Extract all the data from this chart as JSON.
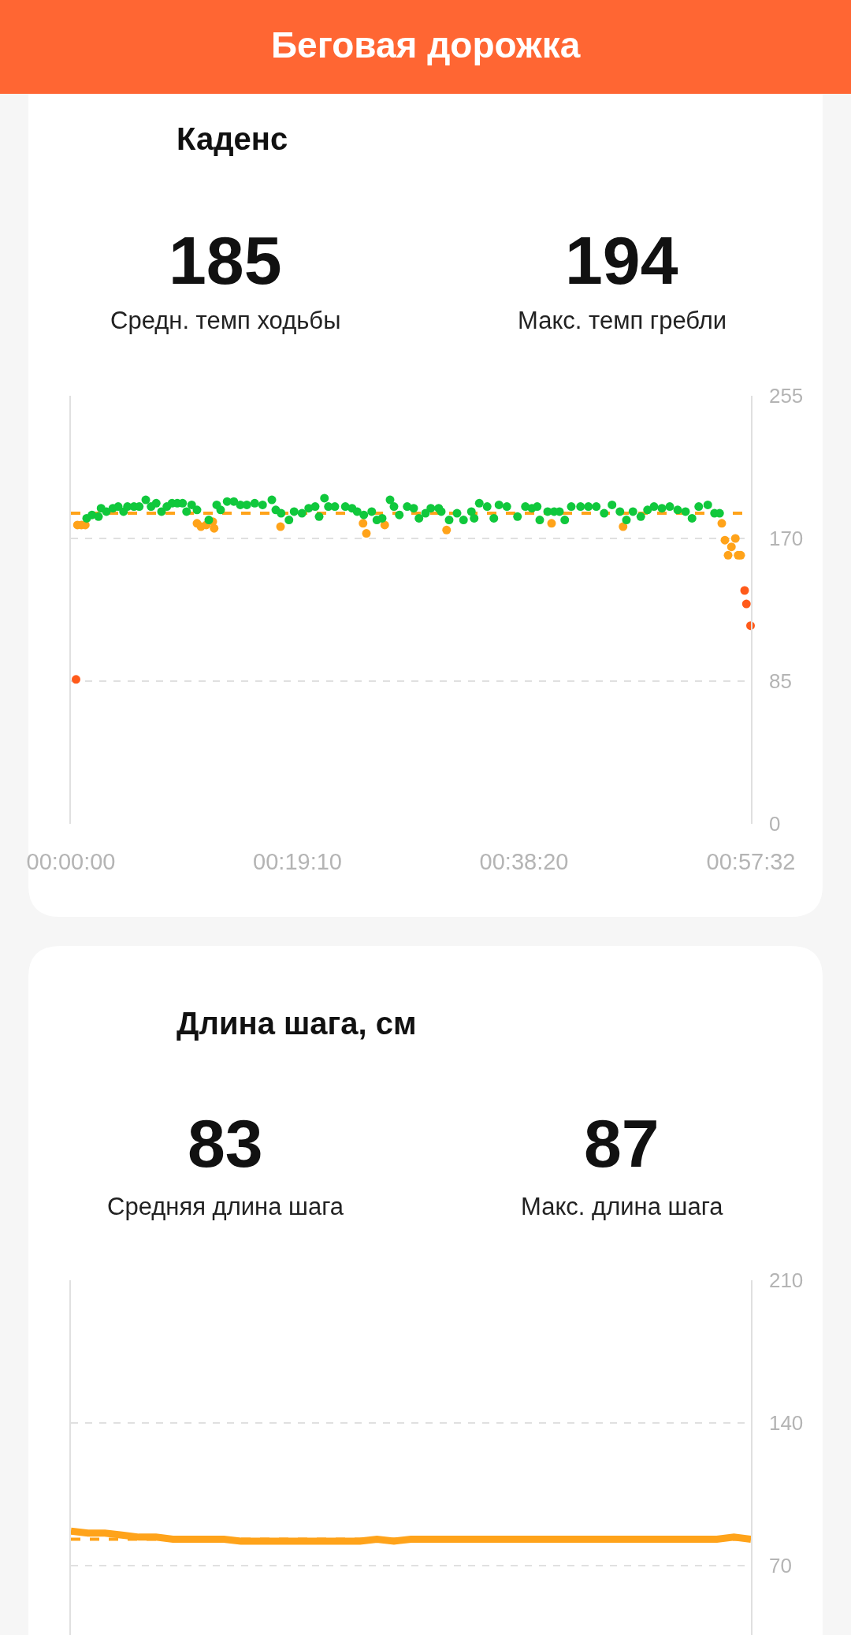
{
  "chart_data": [
    {
      "type": "other",
      "title": "Беговая дорожка"
    },
    {
      "type": "scatter",
      "title": "Каденс",
      "annotations": [
        "185",
        "Средн. темп ходьбы",
        "194",
        "Макс. темп гребли"
      ],
      "xlim": [
        0,
        3452
      ],
      "xticks": [
        {
          "value": 0,
          "label": "00:00:00"
        },
        {
          "value": 1150,
          "label": "00:19:10"
        },
        {
          "value": 2300,
          "label": "00:38:20"
        },
        {
          "value": 3452,
          "label": "00:57:32"
        }
      ],
      "ylim": [
        0,
        255
      ],
      "yticks": [
        0,
        85,
        170,
        255
      ],
      "grid": "y",
      "marker": "circle",
      "ref_lines": [
        {
          "axis": "y",
          "value": 185,
          "color": "#ffa31a",
          "line_style": "dashed"
        }
      ],
      "series": [
        {
          "color": "#ffa31a",
          "x": [
            33,
            53,
            73,
            640,
            660,
            687,
            720,
            727,
            1064,
            1483,
            1500,
            1593,
            1907,
            2440,
            2803,
            3304,
            3320,
            3336,
            3353,
            3373,
            3387,
            3400
          ],
          "values": [
            178,
            178,
            178,
            179,
            177,
            178,
            180,
            176,
            177,
            179,
            173,
            178,
            175,
            179,
            177,
            179,
            169,
            160,
            165,
            170,
            160,
            160
          ]
        },
        {
          "color": "#ff5a1a",
          "x": [
            26,
            3420,
            3429,
            3450
          ],
          "values": [
            86,
            139,
            131,
            118
          ]
        },
        {
          "color": "#10c83c",
          "x": [
            80,
            107,
            140,
            153,
            180,
            213,
            240,
            267,
            287,
            320,
            347,
            380,
            407,
            433,
            460,
            487,
            513,
            540,
            567,
            587,
            613,
            640,
            700,
            740,
            760,
            793,
            827,
            860,
            893,
            933,
            973,
            1020,
            1040,
            1067,
            1107,
            1133,
            1173,
            1207,
            1240,
            1260,
            1287,
            1307,
            1340,
            1393,
            1427,
            1453,
            1487,
            1527,
            1553,
            1580,
            1620,
            1640,
            1667,
            1707,
            1740,
            1767,
            1800,
            1827,
            1867,
            1880,
            1920,
            1960,
            1993,
            2033,
            2047,
            2073,
            2113,
            2147,
            2173,
            2213,
            2267,
            2307,
            2340,
            2367,
            2380,
            2420,
            2453,
            2480,
            2507,
            2540,
            2587,
            2627,
            2667,
            2707,
            2747,
            2787,
            2820,
            2853,
            2893,
            2927,
            2960,
            3000,
            3040,
            3080,
            3120,
            3153,
            3187,
            3233,
            3267,
            3293
          ],
          "values": [
            182,
            184,
            183,
            188,
            186,
            188,
            189,
            186,
            189,
            189,
            189,
            193,
            189,
            191,
            186,
            189,
            191,
            191,
            191,
            186,
            190,
            187,
            181,
            190,
            187,
            192,
            192,
            190,
            190,
            191,
            190,
            193,
            187,
            185,
            181,
            186,
            185,
            188,
            189,
            183,
            194,
            189,
            189,
            189,
            188,
            186,
            184,
            186,
            181,
            182,
            193,
            189,
            184,
            189,
            188,
            182,
            185,
            188,
            188,
            186,
            181,
            185,
            181,
            186,
            182,
            191,
            189,
            182,
            190,
            189,
            183,
            189,
            188,
            189,
            181,
            186,
            186,
            186,
            181,
            189,
            189,
            189,
            189,
            185,
            190,
            186,
            181,
            186,
            183,
            187,
            189,
            188,
            189,
            187,
            186,
            182,
            189,
            190,
            185,
            185
          ]
        }
      ]
    },
    {
      "type": "line",
      "title": "Длина шага, см",
      "annotations": [
        "83",
        "Средняя длина шага",
        "87",
        "Макс. длина шага"
      ],
      "categories": [
        null,
        null,
        null,
        null,
        null,
        null,
        null,
        null,
        null,
        null,
        null,
        null,
        null,
        null,
        null,
        null,
        null,
        null,
        null,
        null,
        null,
        null,
        null,
        null,
        null,
        null,
        null,
        null,
        null,
        null,
        null,
        null,
        null,
        null,
        null,
        null,
        null,
        null,
        null,
        null,
        null
      ],
      "ylim": [
        36,
        210
      ],
      "yticks": [
        70,
        140,
        210
      ],
      "grid": "y",
      "tick_labels": "y",
      "ref_lines": [
        {
          "axis": "y",
          "value": 83,
          "color": "#ffa31a",
          "line_style": "dashed"
        }
      ],
      "series": [
        {
          "color": "#ffa31a",
          "values": [
            87,
            86,
            86,
            85,
            84,
            84,
            83,
            83,
            83,
            83,
            82,
            82,
            82,
            82,
            82,
            82,
            82,
            82,
            83,
            82,
            83,
            83,
            83,
            83,
            83,
            83,
            83,
            83,
            83,
            83,
            83,
            83,
            83,
            83,
            83,
            83,
            83,
            83,
            83,
            84,
            83
          ]
        }
      ]
    }
  ]
}
